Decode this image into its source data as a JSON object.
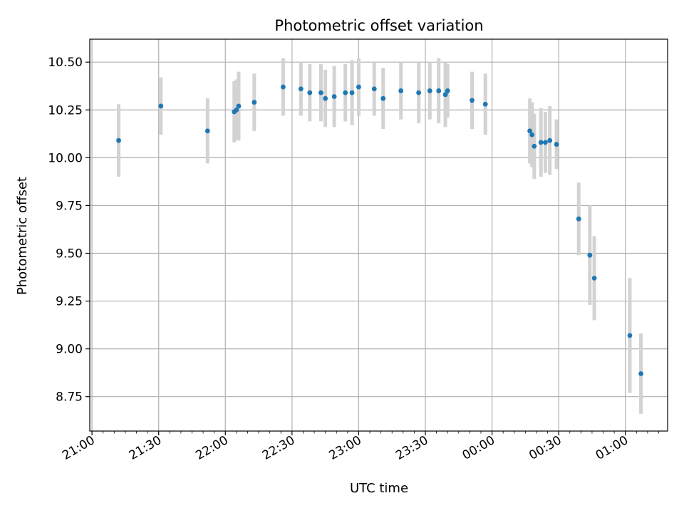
{
  "chart_data": {
    "type": "scatter",
    "title": "Photometric offset variation",
    "xlabel": "UTC time",
    "ylabel": "Photometric offset",
    "x_ticks": [
      "21:00",
      "21:30",
      "22:00",
      "22:30",
      "23:00",
      "23:30",
      "00:00",
      "00:30",
      "01:00"
    ],
    "y_ticks": [
      "8.75",
      "9.00",
      "9.25",
      "9.50",
      "9.75",
      "10.00",
      "10.25",
      "10.50"
    ],
    "xlim": [
      "20:59",
      "01:19"
    ],
    "ylim": [
      8.57,
      10.62
    ],
    "grid": true,
    "colors": {
      "marker": "#1f77b4",
      "errorbar": "#d3d3d3",
      "grid": "#b0b0b0"
    },
    "points": [
      {
        "time": "21:12",
        "y": 10.09,
        "err": 0.19
      },
      {
        "time": "21:31",
        "y": 10.27,
        "err": 0.15
      },
      {
        "time": "21:52",
        "y": 10.14,
        "err": 0.17
      },
      {
        "time": "22:04",
        "y": 10.24,
        "err": 0.16
      },
      {
        "time": "22:05",
        "y": 10.25,
        "err": 0.16
      },
      {
        "time": "22:06",
        "y": 10.27,
        "err": 0.18
      },
      {
        "time": "22:13",
        "y": 10.29,
        "err": 0.15
      },
      {
        "time": "22:26",
        "y": 10.37,
        "err": 0.15
      },
      {
        "time": "22:34",
        "y": 10.36,
        "err": 0.14
      },
      {
        "time": "22:38",
        "y": 10.34,
        "err": 0.15
      },
      {
        "time": "22:43",
        "y": 10.34,
        "err": 0.15
      },
      {
        "time": "22:45",
        "y": 10.31,
        "err": 0.15
      },
      {
        "time": "22:49",
        "y": 10.32,
        "err": 0.16
      },
      {
        "time": "22:54",
        "y": 10.34,
        "err": 0.15
      },
      {
        "time": "22:57",
        "y": 10.34,
        "err": 0.17
      },
      {
        "time": "23:00",
        "y": 10.37,
        "err": 0.15
      },
      {
        "time": "23:07",
        "y": 10.36,
        "err": 0.14
      },
      {
        "time": "23:11",
        "y": 10.31,
        "err": 0.16
      },
      {
        "time": "23:19",
        "y": 10.35,
        "err": 0.15
      },
      {
        "time": "23:27",
        "y": 10.34,
        "err": 0.16
      },
      {
        "time": "23:32",
        "y": 10.35,
        "err": 0.15
      },
      {
        "time": "23:36",
        "y": 10.35,
        "err": 0.17
      },
      {
        "time": "23:39",
        "y": 10.33,
        "err": 0.17
      },
      {
        "time": "23:40",
        "y": 10.35,
        "err": 0.14
      },
      {
        "time": "23:51",
        "y": 10.3,
        "err": 0.15
      },
      {
        "time": "23:57",
        "y": 10.28,
        "err": 0.16
      },
      {
        "time": "00:17",
        "y": 10.14,
        "err": 0.17
      },
      {
        "time": "00:18",
        "y": 10.12,
        "err": 0.17
      },
      {
        "time": "00:19",
        "y": 10.06,
        "err": 0.17
      },
      {
        "time": "00:22",
        "y": 10.08,
        "err": 0.18
      },
      {
        "time": "00:24",
        "y": 10.08,
        "err": 0.16
      },
      {
        "time": "00:26",
        "y": 10.09,
        "err": 0.18
      },
      {
        "time": "00:29",
        "y": 10.07,
        "err": 0.13
      },
      {
        "time": "00:39",
        "y": 9.68,
        "err": 0.19
      },
      {
        "time": "00:44",
        "y": 9.49,
        "err": 0.26
      },
      {
        "time": "00:46",
        "y": 9.37,
        "err": 0.22
      },
      {
        "time": "01:02",
        "y": 9.07,
        "err": 0.3
      },
      {
        "time": "01:07",
        "y": 8.87,
        "err": 0.21
      }
    ]
  }
}
